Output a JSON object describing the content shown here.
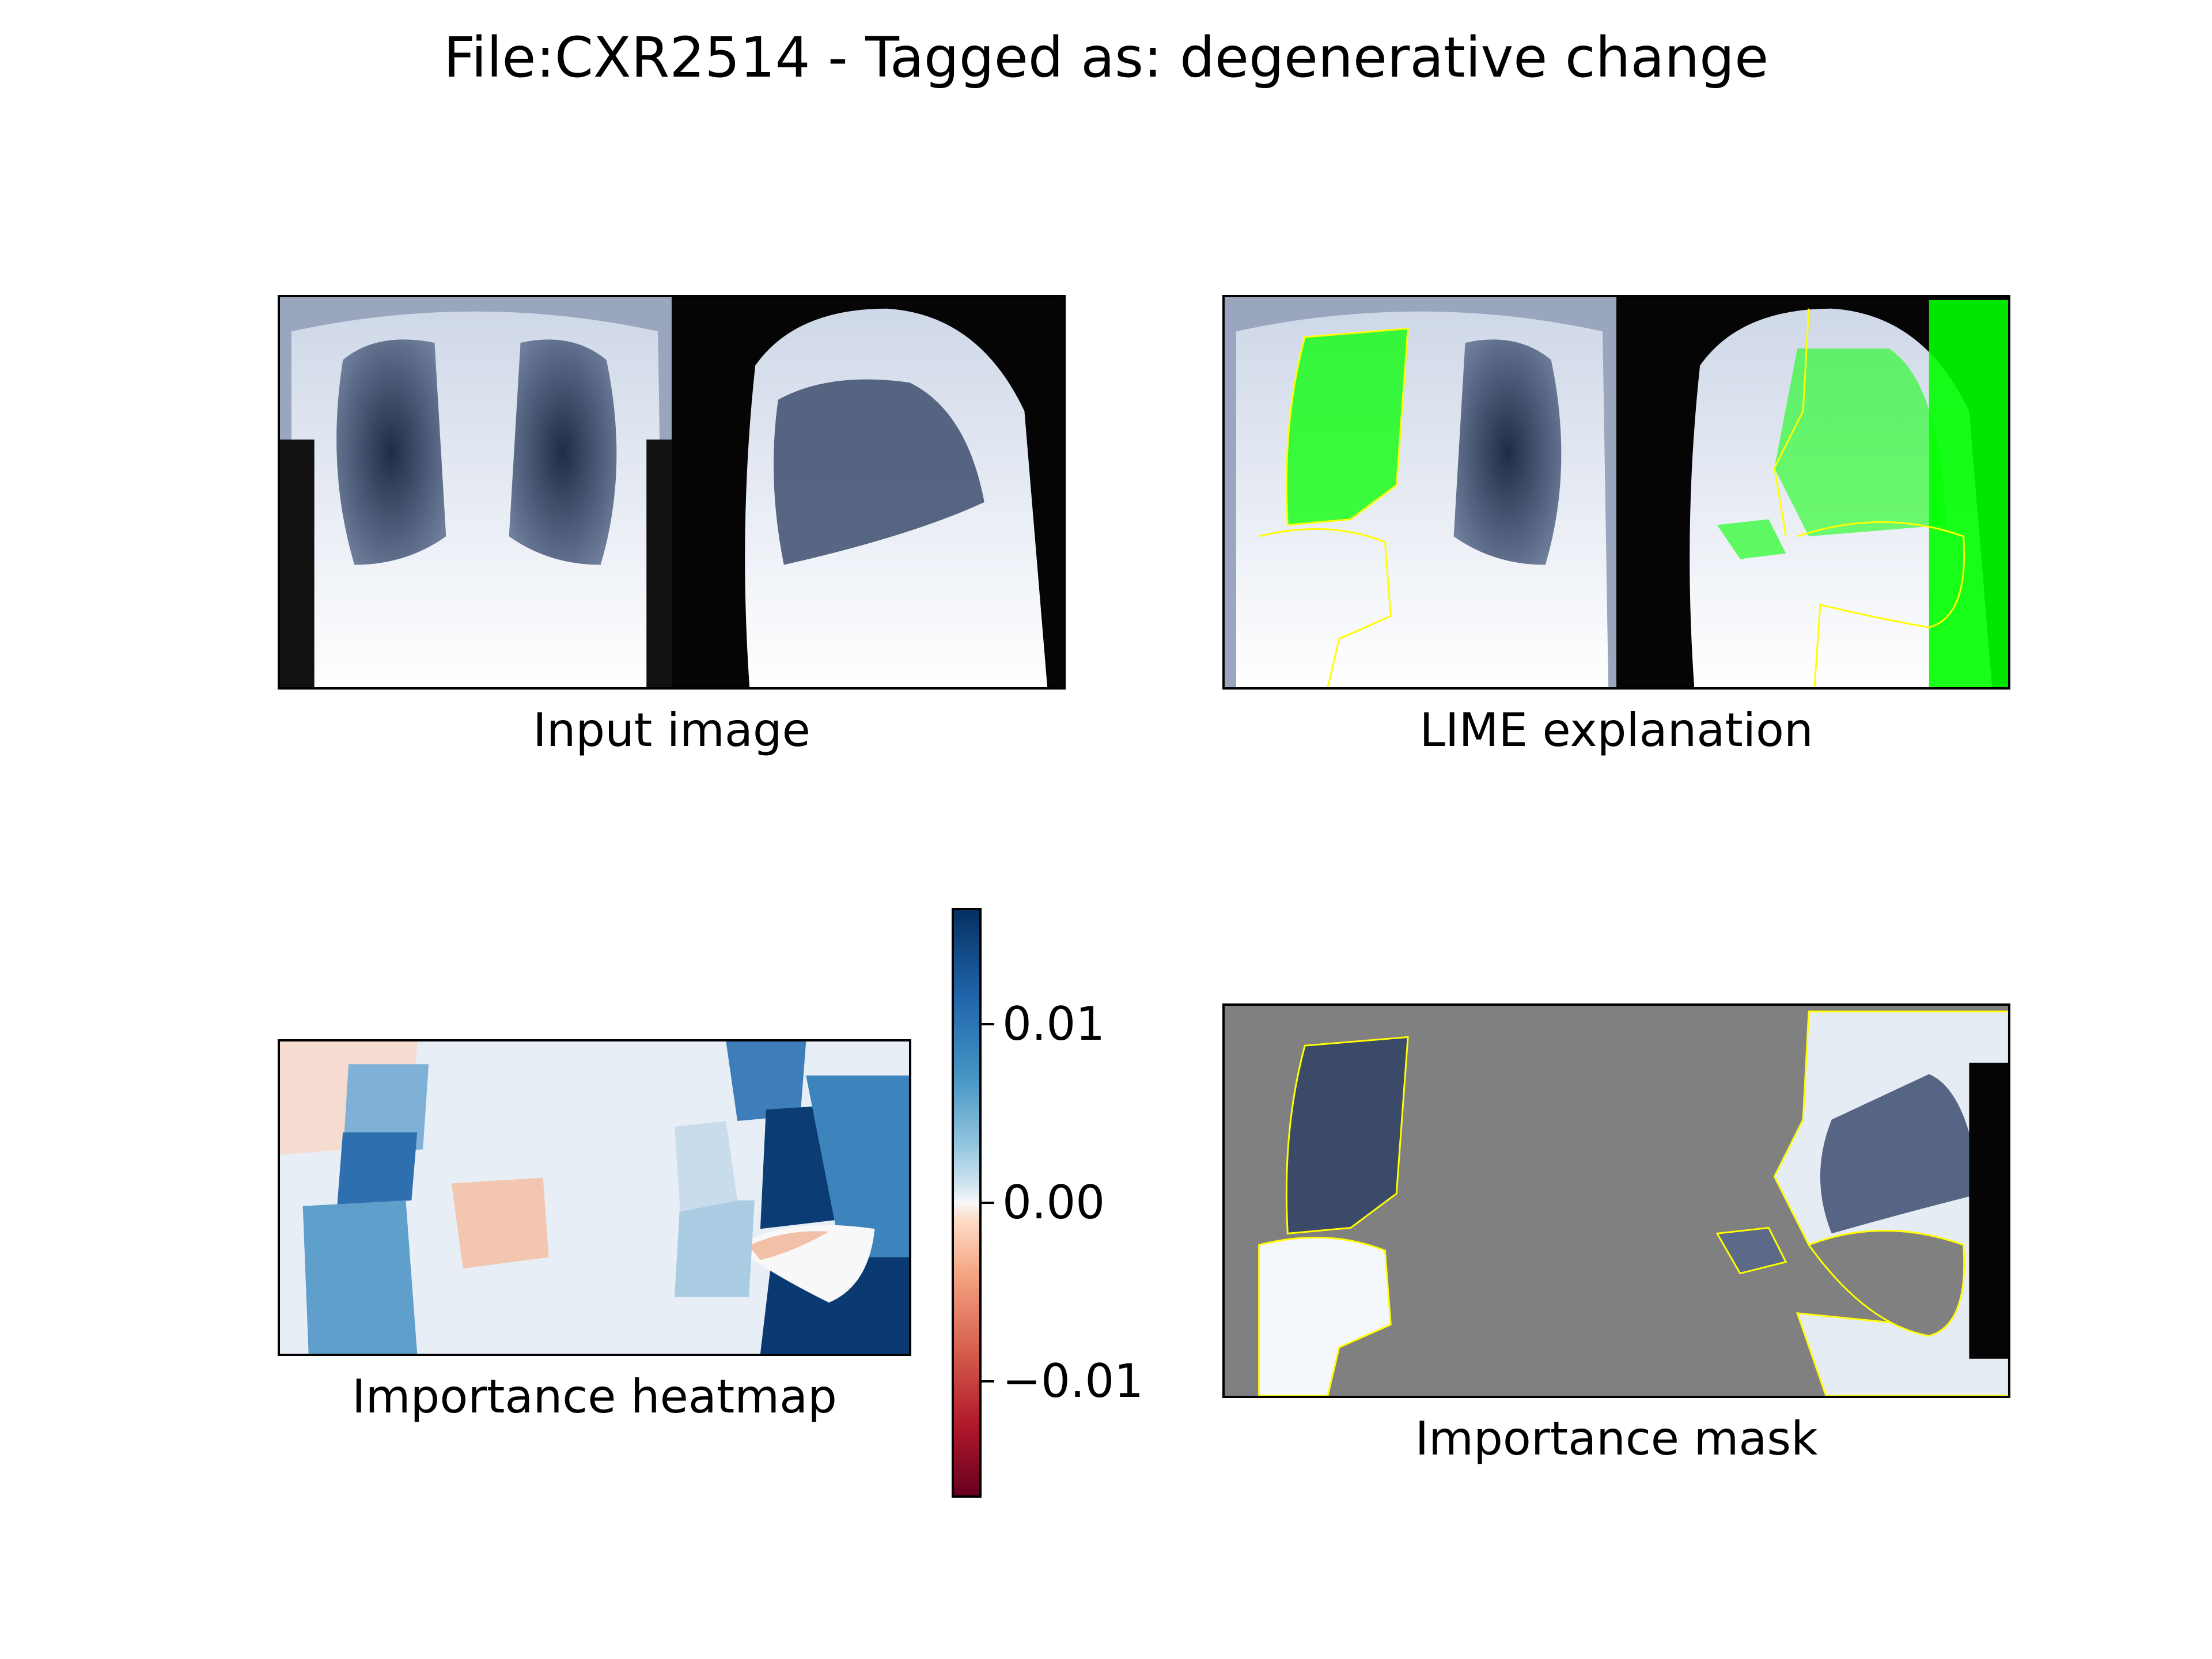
{
  "figure": {
    "suptitle": "File:CXR2514 - Tagged as: degenerative change"
  },
  "chart_data": [
    {
      "type": "image",
      "title": "Input image",
      "content": "frontal and lateral chest x-ray pair"
    },
    {
      "type": "image",
      "title": "LIME explanation",
      "content": "x-ray with green highlighted regions and yellow boundaries"
    },
    {
      "type": "heatmap",
      "title": "Importance heatmap",
      "colormap": "RdBu",
      "colorbar": {
        "ticks": [
          0.01,
          0.0,
          -0.01
        ],
        "tick_labels": [
          "0.01",
          "0.00",
          "−0.01"
        ],
        "vmin": -0.0165,
        "vmax": 0.0165
      }
    },
    {
      "type": "image",
      "title": "Importance mask",
      "content": "x-ray regions shown over grey background with yellow boundaries"
    }
  ],
  "colors": {
    "highlight": "#00ff00",
    "boundary": "#ffff00",
    "mask_bg": "#808080"
  }
}
